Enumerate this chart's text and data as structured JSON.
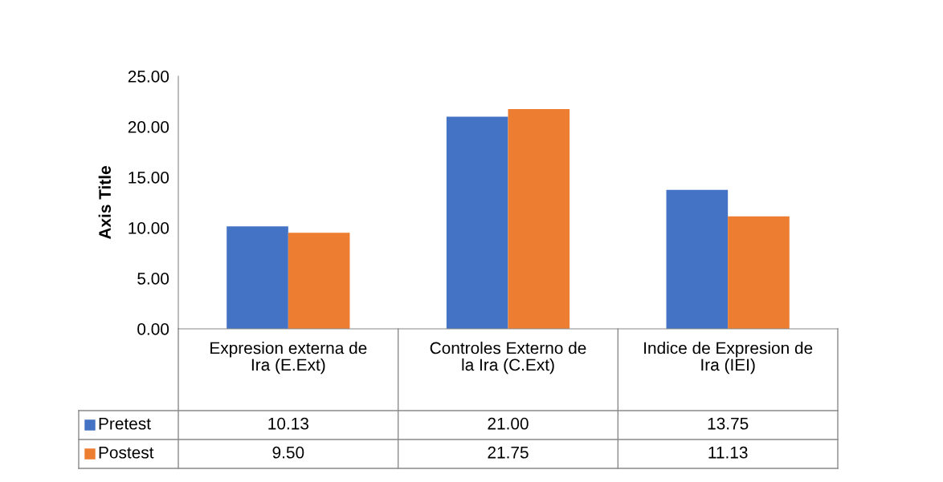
{
  "chart_data": {
    "type": "bar",
    "ylabel": "Axis Title",
    "categories": [
      "Expresion externa de Ira (E.Ext)",
      "Controles Externo de la Ira (C.Ext)",
      "Indice de Expresion de Ira (IEI)"
    ],
    "series": [
      {
        "name": "Pretest",
        "color": "#4472c4",
        "values": [
          10.13,
          21.0,
          13.75
        ],
        "value_labels": [
          "10.13",
          "21.00",
          "13.75"
        ]
      },
      {
        "name": "Postest",
        "color": "#ed7d31",
        "values": [
          9.5,
          21.75,
          11.13
        ],
        "value_labels": [
          "9.50",
          "21.75",
          "11.13"
        ]
      }
    ],
    "ylim": [
      0,
      25
    ],
    "yticks": [
      {
        "value": 0,
        "label": "0.00"
      },
      {
        "value": 5,
        "label": "5.00"
      },
      {
        "value": 10,
        "label": "10.00"
      },
      {
        "value": 15,
        "label": "15.00"
      },
      {
        "value": 20,
        "label": "20.00"
      },
      {
        "value": 25,
        "label": "25.00"
      }
    ],
    "legend": "bottom",
    "grid": false
  }
}
